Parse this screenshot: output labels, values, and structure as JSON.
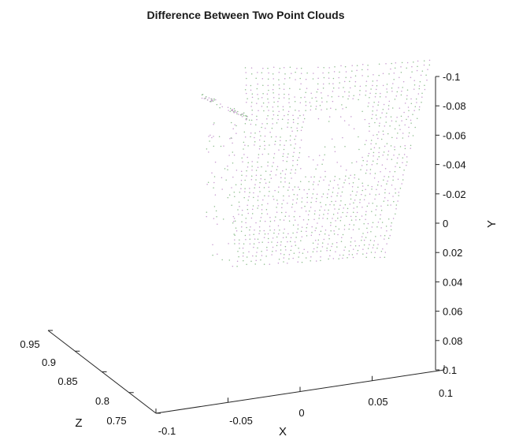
{
  "chart_data": {
    "type": "scatter",
    "title": "Difference Between Two Point Clouds",
    "xlabel": "X",
    "ylabel": "Y",
    "zlabel": "Z",
    "x_ticks": [
      "-0.1",
      "-0.05",
      "0",
      "0.05",
      "0.1"
    ],
    "y_ticks": [
      "-0.1",
      "-0.08",
      "-0.06",
      "-0.04",
      "-0.02",
      "0",
      "0.02",
      "0.04",
      "0.06",
      "0.08",
      "0.1"
    ],
    "z_ticks": [
      "0.95",
      "0.9",
      "0.85",
      "0.8",
      "0.75"
    ],
    "xlim": [
      -0.1,
      0.1
    ],
    "ylim": [
      -0.1,
      0.1
    ],
    "zlim": [
      0.75,
      0.95
    ],
    "y_direction": "reversed",
    "grid": false,
    "legend": "none",
    "series": [
      {
        "color": "#8fbf8f",
        "marker": "dot"
      },
      {
        "color": "#c79ad0",
        "marker": "dot"
      }
    ]
  }
}
